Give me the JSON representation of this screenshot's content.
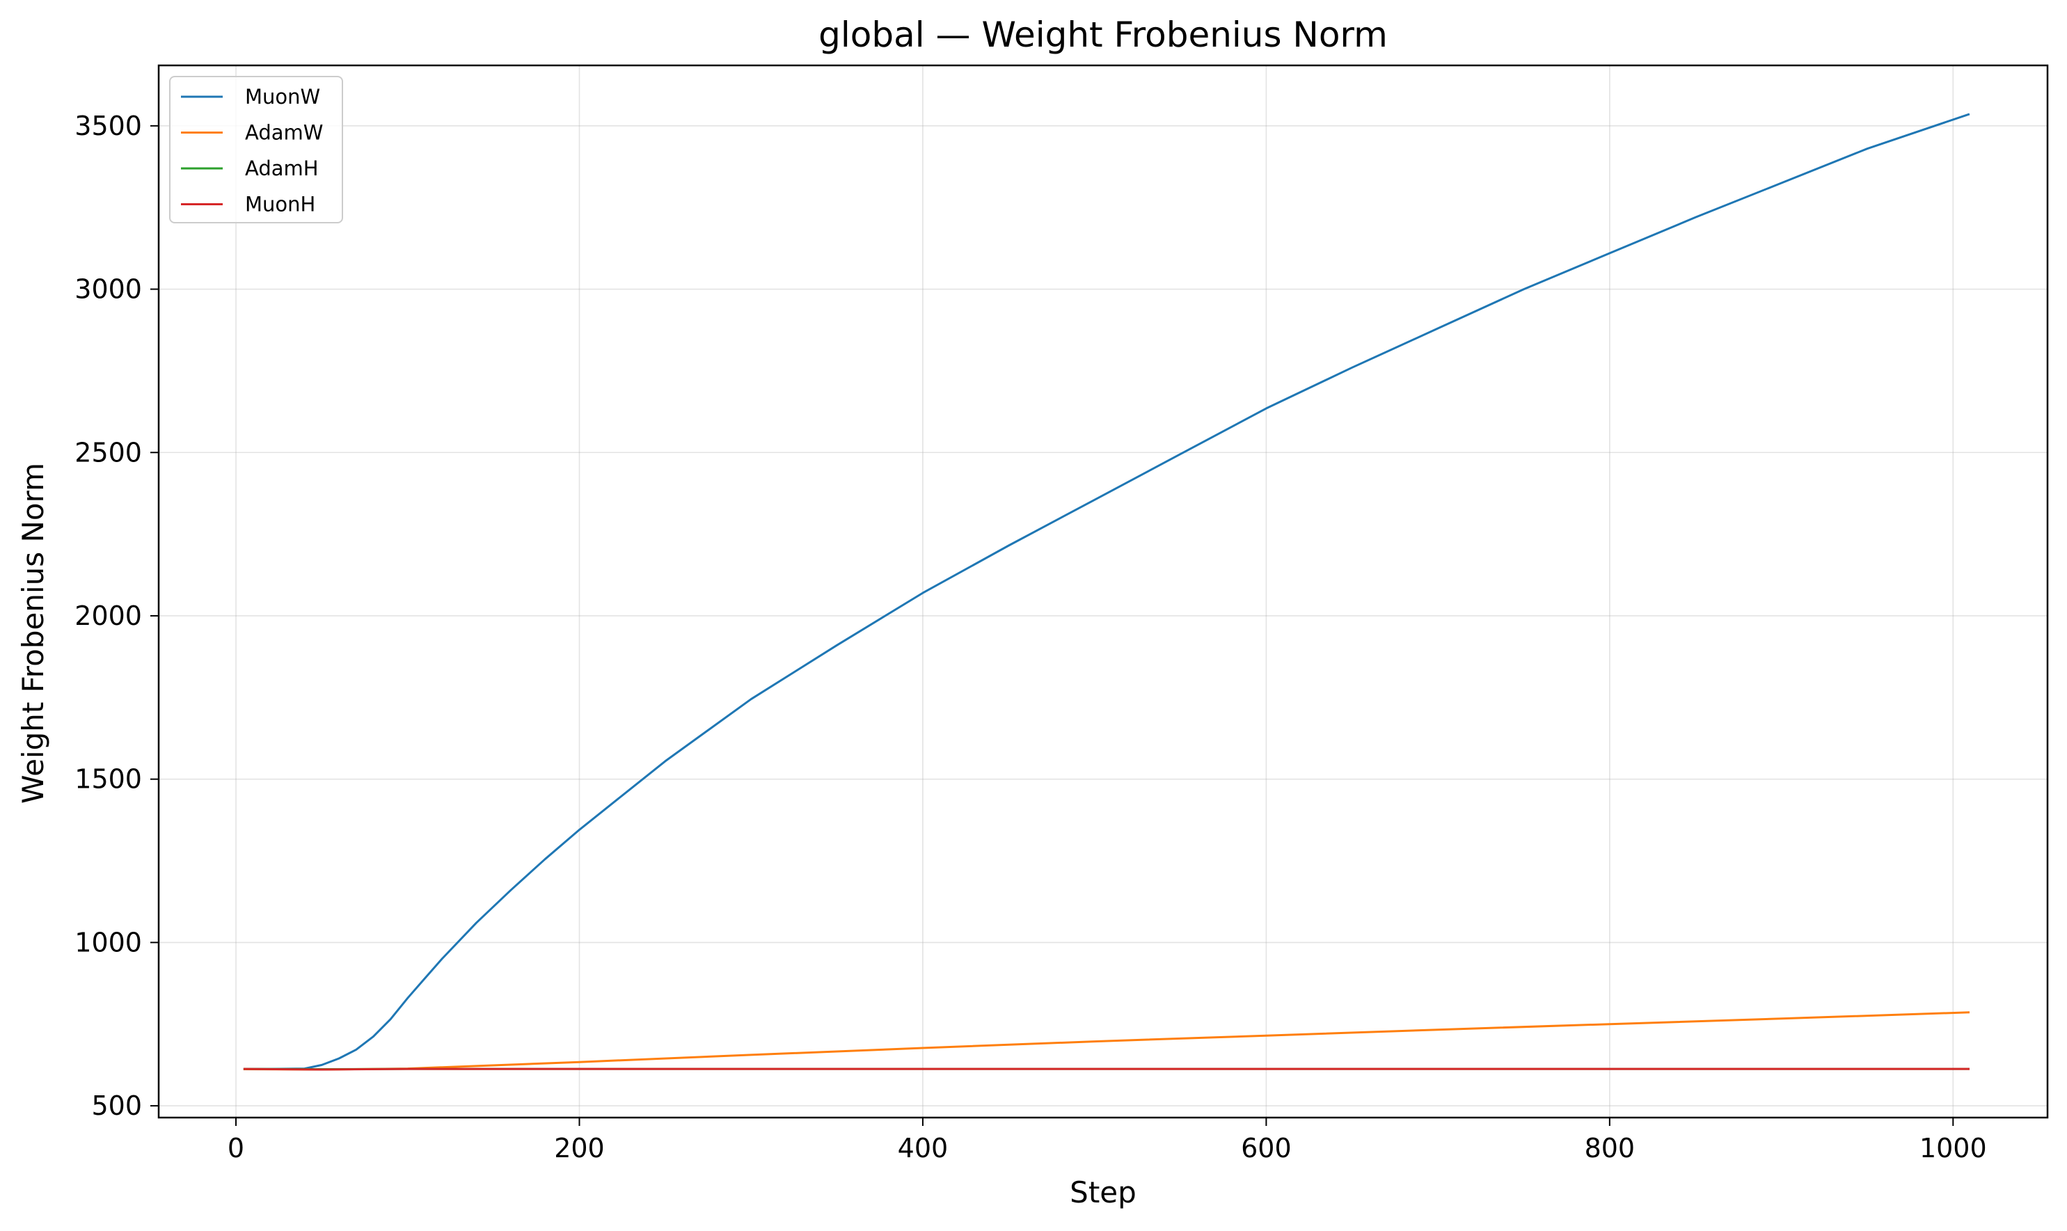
{
  "chart_data": {
    "type": "line",
    "title": "global — Weight Frobenius Norm",
    "xlabel": "Step",
    "ylabel": "Weight Frobenius Norm",
    "xlim": [
      -45,
      1055
    ],
    "ylim": [
      464,
      3685
    ],
    "xticks": [
      0,
      200,
      400,
      600,
      800,
      1000
    ],
    "yticks": [
      500,
      1000,
      1500,
      2000,
      2500,
      3000,
      3500
    ],
    "grid": true,
    "legend_position": "top-left",
    "series": [
      {
        "name": "MuonW",
        "color": "#1f77b4",
        "x": [
          5,
          20,
          40,
          50,
          60,
          70,
          80,
          90,
          100,
          110,
          120,
          140,
          160,
          180,
          200,
          250,
          300,
          350,
          400,
          450,
          500,
          550,
          600,
          650,
          700,
          750,
          800,
          850,
          900,
          950,
          1009
        ],
        "y": [
          613,
          613,
          614,
          625,
          645,
          672,
          712,
          765,
          830,
          890,
          950,
          1060,
          1160,
          1255,
          1345,
          1555,
          1745,
          1910,
          2070,
          2215,
          2355,
          2495,
          2635,
          2760,
          2880,
          3000,
          3110,
          3220,
          3325,
          3430,
          3535
        ]
      },
      {
        "name": "AdamW",
        "color": "#ff7f0e",
        "x": [
          5,
          50,
          100,
          200,
          300,
          400,
          500,
          600,
          700,
          800,
          900,
          1009
        ],
        "y": [
          612,
          611,
          614,
          634,
          656,
          677,
          697,
          715,
          733,
          750,
          767,
          786
        ]
      },
      {
        "name": "AdamH",
        "color": "#2ca02c",
        "x": [
          5,
          50,
          100,
          200,
          400,
          600,
          800,
          1009
        ],
        "y": [
          613,
          612,
          613,
          613,
          613,
          613,
          613,
          613
        ]
      },
      {
        "name": "MuonH",
        "color": "#d62728",
        "x": [
          5,
          50,
          100,
          200,
          400,
          600,
          800,
          1009
        ],
        "y": [
          613,
          611,
          613,
          613,
          613,
          613,
          613,
          613
        ]
      }
    ]
  }
}
